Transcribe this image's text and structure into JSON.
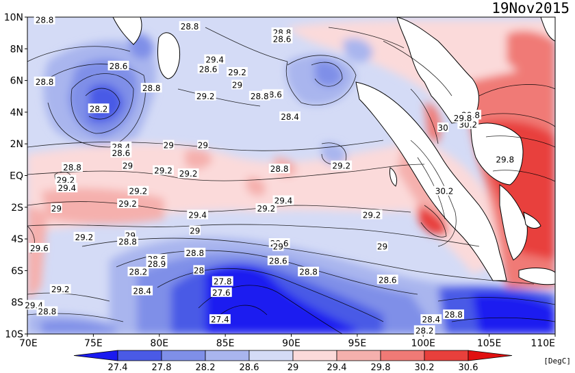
{
  "date": "19Nov2015",
  "unit": "[DegC]",
  "lat_labels": [
    "10N",
    "8N",
    "6N",
    "4N",
    "2N",
    "EQ",
    "2S",
    "4S",
    "6S",
    "8S",
    "10S"
  ],
  "lon_labels": [
    "70E",
    "75E",
    "80E",
    "85E",
    "90E",
    "95E",
    "100E",
    "105E",
    "110E"
  ],
  "colorbar": {
    "ticks": [
      "27.4",
      "27.8",
      "28.2",
      "28.6",
      "29",
      "29.4",
      "29.8",
      "30.2",
      "30.6"
    ],
    "colors": [
      "#1a1af0",
      "#4a5ae6",
      "#7f8fe8",
      "#a9b5ee",
      "#d4dbf6",
      "#fbdada",
      "#f5b0ad",
      "#f07a76",
      "#e8403c",
      "#e01010"
    ]
  },
  "contour_labels": [
    {
      "text": "28.8",
      "lon": 71.3,
      "lat": 9.8
    },
    {
      "text": "28.8",
      "lon": 82.3,
      "lat": 9.4
    },
    {
      "text": "28.8",
      "lon": 89.3,
      "lat": 9.0
    },
    {
      "text": "28.6",
      "lon": 89.3,
      "lat": 8.6
    },
    {
      "text": "29.4",
      "lon": 84.2,
      "lat": 7.3
    },
    {
      "text": "28.6",
      "lon": 76.9,
      "lat": 6.9
    },
    {
      "text": "28.6",
      "lon": 83.7,
      "lat": 6.7
    },
    {
      "text": "29.2",
      "lon": 85.9,
      "lat": 6.5
    },
    {
      "text": "28.8",
      "lon": 71.3,
      "lat": 5.9
    },
    {
      "text": "29",
      "lon": 85.9,
      "lat": 5.7
    },
    {
      "text": "28.8",
      "lon": 79.4,
      "lat": 5.5
    },
    {
      "text": "28.6",
      "lon": 88.6,
      "lat": 5.1
    },
    {
      "text": "29.2",
      "lon": 83.5,
      "lat": 5.0
    },
    {
      "text": "28.8",
      "lon": 87.6,
      "lat": 5.0
    },
    {
      "text": "28.2",
      "lon": 75.4,
      "lat": 4.2
    },
    {
      "text": "28.4",
      "lon": 89.9,
      "lat": 3.7
    },
    {
      "text": "29.8",
      "lon": 103.6,
      "lat": 3.8
    },
    {
      "text": "30.2",
      "lon": 103.4,
      "lat": 3.2
    },
    {
      "text": "29.8",
      "lon": 103.0,
      "lat": 3.6
    },
    {
      "text": "30",
      "lon": 101.5,
      "lat": 3.0
    },
    {
      "text": "29",
      "lon": 80.7,
      "lat": 1.9
    },
    {
      "text": "29",
      "lon": 83.3,
      "lat": 1.9
    },
    {
      "text": "28.4",
      "lon": 77.1,
      "lat": 1.8
    },
    {
      "text": "28.6",
      "lon": 77.1,
      "lat": 1.4
    },
    {
      "text": "29.8",
      "lon": 106.2,
      "lat": 1.0
    },
    {
      "text": "28.8",
      "lon": 73.4,
      "lat": 0.5
    },
    {
      "text": "29",
      "lon": 77.6,
      "lat": 0.6
    },
    {
      "text": "29.2",
      "lon": 80.3,
      "lat": 0.3
    },
    {
      "text": "29.2",
      "lon": 82.2,
      "lat": 0.1
    },
    {
      "text": "28.8",
      "lon": 89.1,
      "lat": 0.4
    },
    {
      "text": "29.2",
      "lon": 93.8,
      "lat": 0.6
    },
    {
      "text": "29.2",
      "lon": 72.9,
      "lat": -0.3
    },
    {
      "text": "29.4",
      "lon": 73.0,
      "lat": -0.8
    },
    {
      "text": "29.2",
      "lon": 78.4,
      "lat": -1.0
    },
    {
      "text": "30.2",
      "lon": 101.6,
      "lat": -1.0
    },
    {
      "text": "29",
      "lon": 72.2,
      "lat": -2.1
    },
    {
      "text": "29.2",
      "lon": 77.6,
      "lat": -1.8
    },
    {
      "text": "29.4",
      "lon": 89.4,
      "lat": -1.6
    },
    {
      "text": "29.2",
      "lon": 88.1,
      "lat": -2.1
    },
    {
      "text": "29.4",
      "lon": 82.9,
      "lat": -2.5
    },
    {
      "text": "29.2",
      "lon": 96.1,
      "lat": -2.5
    },
    {
      "text": "29",
      "lon": 82.7,
      "lat": -3.5
    },
    {
      "text": "29.2",
      "lon": 74.3,
      "lat": -3.9
    },
    {
      "text": "29",
      "lon": 77.8,
      "lat": -3.8
    },
    {
      "text": "28.8",
      "lon": 77.6,
      "lat": -4.2
    },
    {
      "text": "28.6",
      "lon": 89.1,
      "lat": -4.3
    },
    {
      "text": "29",
      "lon": 96.9,
      "lat": -4.5
    },
    {
      "text": "29.6",
      "lon": 70.9,
      "lat": -4.6
    },
    {
      "text": "28.8",
      "lon": 82.7,
      "lat": -4.9
    },
    {
      "text": "29",
      "lon": 89.0,
      "lat": -4.5
    },
    {
      "text": "28.6",
      "lon": 79.8,
      "lat": -5.3
    },
    {
      "text": "28.6",
      "lon": 89.0,
      "lat": -5.4
    },
    {
      "text": "28.9",
      "lon": 79.8,
      "lat": -5.6
    },
    {
      "text": "28",
      "lon": 83.0,
      "lat": -6.0
    },
    {
      "text": "28.2",
      "lon": 78.4,
      "lat": -6.1
    },
    {
      "text": "28.8",
      "lon": 91.3,
      "lat": -6.1
    },
    {
      "text": "28.6",
      "lon": 97.3,
      "lat": -6.6
    },
    {
      "text": "27.8",
      "lon": 84.8,
      "lat": -6.7
    },
    {
      "text": "28.4",
      "lon": 78.7,
      "lat": -7.3
    },
    {
      "text": "27.6",
      "lon": 84.7,
      "lat": -7.4
    },
    {
      "text": "29.2",
      "lon": 72.5,
      "lat": -7.2
    },
    {
      "text": "29.4",
      "lon": 70.5,
      "lat": -8.2
    },
    {
      "text": "28.8",
      "lon": 71.5,
      "lat": -8.6
    },
    {
      "text": "28.8",
      "lon": 102.3,
      "lat": -8.8
    },
    {
      "text": "28.4",
      "lon": 100.6,
      "lat": -9.1
    },
    {
      "text": "27.4",
      "lon": 84.6,
      "lat": -9.1
    },
    {
      "text": "28.2",
      "lon": 100.1,
      "lat": -9.8
    }
  ]
}
